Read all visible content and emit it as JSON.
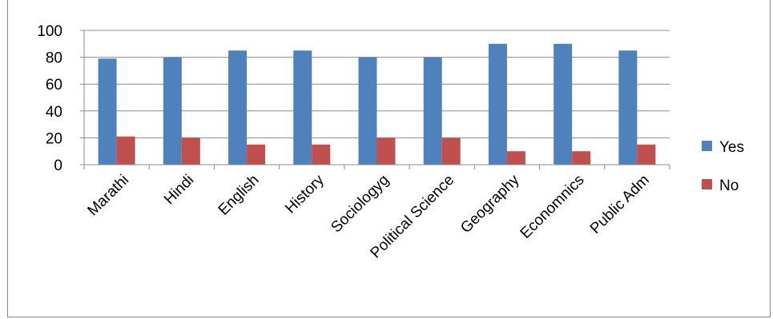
{
  "chart_data": {
    "type": "bar",
    "categories": [
      "Marathi",
      "Hindi",
      "English",
      "History",
      "Sociologyg",
      "Political Science",
      "Geography",
      "Economnics",
      "Public Adm"
    ],
    "series": [
      {
        "name": "Yes",
        "values": [
          79,
          80,
          85,
          85,
          80,
          80,
          90,
          90,
          85
        ],
        "color": "#4f81bd"
      },
      {
        "name": "No",
        "values": [
          21,
          20,
          15,
          15,
          20,
          20,
          10,
          10,
          15
        ],
        "color": "#c0504d"
      }
    ],
    "title": "",
    "xlabel": "",
    "ylabel": "",
    "ylim": [
      0,
      100
    ],
    "yticks": [
      0,
      20,
      40,
      60,
      80,
      100
    ],
    "grid": true,
    "legend_position": "right"
  }
}
